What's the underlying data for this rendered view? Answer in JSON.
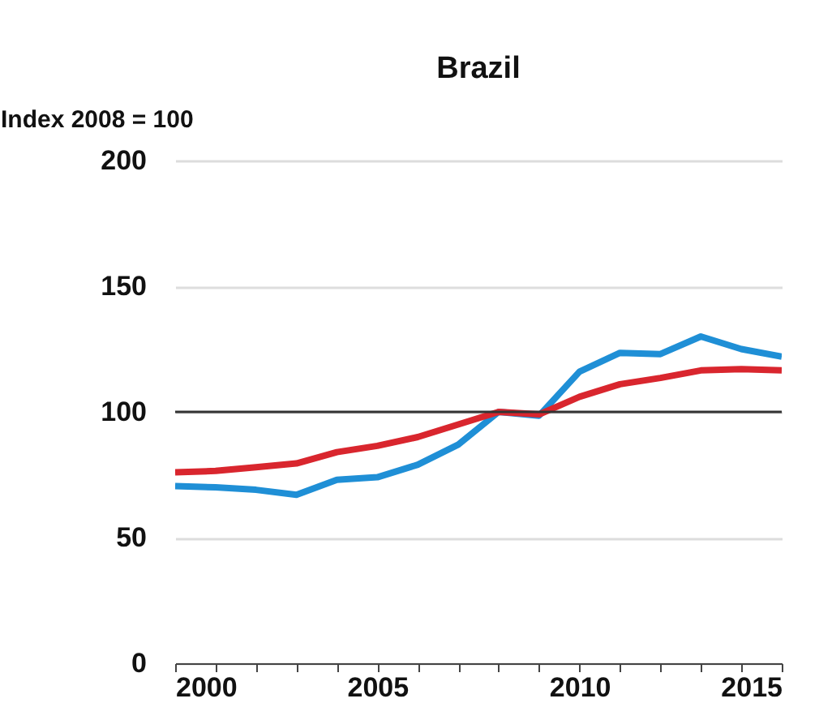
{
  "chart_data": {
    "type": "line",
    "title": "Brazil",
    "ylabel": "Index 2008 = 100",
    "x": [
      2000,
      2001,
      2002,
      2003,
      2004,
      2005,
      2006,
      2007,
      2008,
      2009,
      2010,
      2011,
      2012,
      2013,
      2014,
      2015
    ],
    "series": [
      {
        "color": "#1f8fd6",
        "values": [
          70.5,
          70,
          69,
          67,
          73,
          74,
          79,
          87,
          100,
          98.5,
          116,
          123.5,
          123,
          130,
          125,
          122
        ]
      },
      {
        "color": "#d9262e",
        "values": [
          76,
          76.5,
          78,
          79.5,
          84,
          86.5,
          90,
          95,
          100,
          99,
          106,
          111,
          113.5,
          116.5,
          117,
          116.5
        ]
      }
    ],
    "xlim": [
      2000,
      2015
    ],
    "xticks": [
      2000,
      {
        "value": 2001,
        "label": null
      },
      {
        "value": 2002,
        "label": null
      },
      {
        "value": 2003,
        "label": null
      },
      {
        "value": 2004,
        "label": null
      },
      2005,
      {
        "value": 2006,
        "label": null
      },
      {
        "value": 2007,
        "label": null
      },
      {
        "value": 2008,
        "label": null
      },
      {
        "value": 2009,
        "label": null
      },
      2010,
      {
        "value": 2011,
        "label": null
      },
      {
        "value": 2012,
        "label": null
      },
      {
        "value": 2013,
        "label": null
      },
      {
        "value": 2014,
        "label": null
      },
      2015
    ],
    "ylim": [
      0,
      200
    ],
    "yticks": [
      0,
      50,
      100,
      150,
      200
    ],
    "ref_lines": [
      {
        "axis": "y",
        "value": 100,
        "color": "#333333"
      }
    ],
    "grid": "y",
    "line_style": "solid"
  }
}
